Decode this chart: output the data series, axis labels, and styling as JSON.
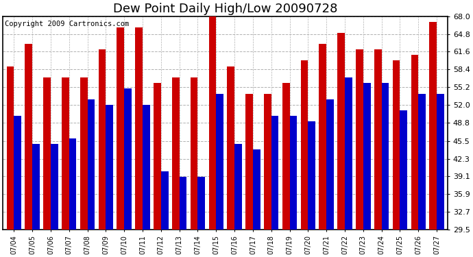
{
  "title": "Dew Point Daily High/Low 20090728",
  "copyright": "Copyright 2009 Cartronics.com",
  "dates": [
    "07/04",
    "07/05",
    "07/06",
    "07/07",
    "07/08",
    "07/09",
    "07/10",
    "07/11",
    "07/12",
    "07/13",
    "07/14",
    "07/15",
    "07/16",
    "07/17",
    "07/18",
    "07/19",
    "07/20",
    "07/21",
    "07/22",
    "07/23",
    "07/24",
    "07/25",
    "07/26",
    "07/27"
  ],
  "highs": [
    59.0,
    63.0,
    57.0,
    57.0,
    57.0,
    62.0,
    66.0,
    66.0,
    56.0,
    57.0,
    57.0,
    68.0,
    59.0,
    54.0,
    54.0,
    56.0,
    60.0,
    63.0,
    65.0,
    62.0,
    62.0,
    60.0,
    61.0,
    67.0
  ],
  "lows": [
    50.0,
    45.0,
    45.0,
    46.0,
    53.0,
    52.0,
    55.0,
    52.0,
    40.0,
    39.0,
    39.0,
    54.0,
    45.0,
    44.0,
    50.0,
    50.0,
    49.0,
    53.0,
    57.0,
    56.0,
    56.0,
    51.0,
    54.0,
    54.0
  ],
  "high_color": "#cc0000",
  "low_color": "#0000cc",
  "background_color": "#ffffff",
  "grid_color": "#b0b0b0",
  "ymin": 29.5,
  "ymax": 68.0,
  "yticks": [
    29.5,
    32.7,
    35.9,
    39.1,
    42.3,
    45.5,
    48.8,
    52.0,
    55.2,
    58.4,
    61.6,
    64.8,
    68.0
  ],
  "title_fontsize": 13,
  "copyright_fontsize": 7.5,
  "bar_width": 0.4
}
